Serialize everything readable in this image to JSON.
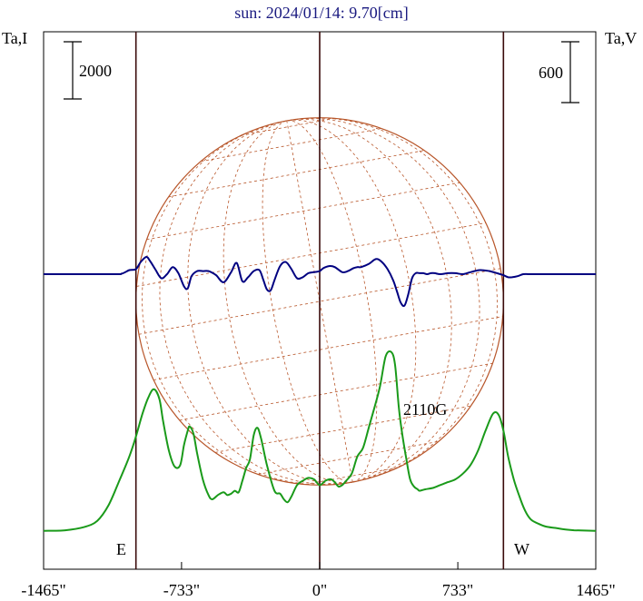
{
  "chart_data": {
    "type": "line",
    "title": "sun: 2024/01/14: 9.70[cm]",
    "left_axis_label": "Ta,I",
    "right_axis_label": "Ta,V",
    "left_scale_bar": "2000",
    "right_scale_bar": "600",
    "x_tick_labels": [
      "-1465\"",
      "-733\"",
      "0\"",
      "733\"",
      "1465\""
    ],
    "x_ticks": [
      -1465,
      -733,
      0,
      733,
      1465
    ],
    "xlim": [
      -1465,
      1465
    ],
    "limb_east_label": "E",
    "limb_west_label": "W",
    "limb_arcsec": 975,
    "annotation": {
      "text": "2110G",
      "x": 580,
      "y": 1880
    },
    "colors": {
      "stokes_I": "#1a9a1a",
      "stokes_V": "#000080",
      "disk": "#b8562a",
      "verticals": "#3a0a0a",
      "title": "#1a1a80"
    },
    "grid": false,
    "stokes_I": {
      "x": [
        -1465,
        -1350,
        -1250,
        -1180,
        -1120,
        -1060,
        -1010,
        -975,
        -940,
        -910,
        -880,
        -850,
        -830,
        -800,
        -770,
        -740,
        -720,
        -700,
        -690,
        -670,
        -650,
        -620,
        -590,
        -570,
        -540,
        -510,
        -490,
        -470,
        -450,
        -430,
        -410,
        -390,
        -370,
        -350,
        -330,
        -310,
        -280,
        -240,
        -210,
        -190,
        -170,
        -150,
        -120,
        -90,
        -60,
        -30,
        0,
        30,
        60,
        80,
        100,
        120,
        140,
        170,
        200,
        230,
        260,
        290,
        320,
        350,
        380,
        400,
        420,
        440,
        460,
        480,
        500,
        520,
        530,
        560,
        600,
        640,
        680,
        720,
        760,
        800,
        840,
        880,
        920,
        950,
        975,
        1000,
        1030,
        1060,
        1090,
        1120,
        1160,
        1200,
        1250,
        1300,
        1350,
        1465
      ],
      "y": [
        200,
        220,
        330,
        550,
        1100,
        2000,
        2800,
        3500,
        4300,
        4850,
        5150,
        4800,
        4000,
        3000,
        2450,
        2500,
        3200,
        3700,
        3850,
        3600,
        2900,
        2000,
        1450,
        1300,
        1450,
        1550,
        1450,
        1500,
        1600,
        1550,
        1950,
        2400,
        2700,
        3550,
        3800,
        3400,
        2500,
        1600,
        1500,
        1300,
        1200,
        1400,
        1800,
        1950,
        2050,
        2000,
        1800,
        1950,
        2000,
        1900,
        1750,
        1800,
        1950,
        2200,
        2800,
        3100,
        3800,
        4500,
        5250,
        6300,
        6450,
        6000,
        4500,
        3500,
        2700,
        2000,
        1750,
        1650,
        1600,
        1650,
        1700,
        1800,
        1900,
        2000,
        2200,
        2500,
        3000,
        3700,
        4300,
        4250,
        3700,
        2800,
        2000,
        1400,
        900,
        600,
        450,
        350,
        300,
        250,
        220,
        200
      ]
    },
    "stokes_V": {
      "x": [
        -1465,
        -1100,
        -1050,
        -1010,
        -975,
        -950,
        -920,
        -900,
        -870,
        -840,
        -810,
        -780,
        -750,
        -720,
        -700,
        -680,
        -650,
        -620,
        -590,
        -550,
        -510,
        -470,
        -440,
        -410,
        -380,
        -350,
        -320,
        -300,
        -280,
        -260,
        -240,
        -210,
        -180,
        -150,
        -120,
        -90,
        -60,
        -30,
        0,
        20,
        50,
        80,
        120,
        150,
        180,
        200,
        220,
        260,
        300,
        330,
        360,
        390,
        410,
        430,
        450,
        470,
        490,
        510,
        530,
        550,
        570,
        590,
        610,
        640,
        680,
        720,
        760,
        800,
        850,
        900,
        940,
        975,
        1000,
        1020,
        1050,
        1080,
        1110,
        1150,
        1465
      ],
      "y": [
        0,
        0,
        5,
        40,
        50,
        120,
        170,
        130,
        40,
        -40,
        0,
        70,
        10,
        -120,
        -140,
        -20,
        30,
        30,
        30,
        -10,
        -80,
        20,
        110,
        -70,
        -30,
        30,
        40,
        -50,
        -150,
        -160,
        -60,
        80,
        120,
        50,
        -40,
        -30,
        10,
        20,
        30,
        60,
        80,
        70,
        20,
        30,
        60,
        70,
        70,
        100,
        150,
        120,
        50,
        -60,
        -170,
        -280,
        -310,
        -200,
        -40,
        10,
        10,
        10,
        0,
        10,
        10,
        0,
        10,
        10,
        0,
        20,
        40,
        30,
        10,
        -10,
        -30,
        -30,
        -20,
        0,
        0,
        0,
        0
      ]
    }
  }
}
